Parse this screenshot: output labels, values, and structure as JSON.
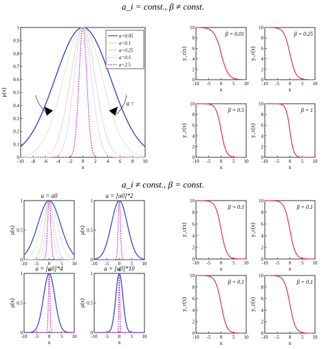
{
  "headings": {
    "top": "a_i = const., β ≠ const.",
    "bottom": "a_i ≠ const., β = const."
  },
  "colors": {
    "blue": "#3344cc",
    "magenta": "#c020c0",
    "red": "#e0303c",
    "pale": [
      "#cfe6cf",
      "#f5c8c8",
      "#cfd9f0",
      "#e8d0ee"
    ]
  },
  "chart_data": [
    {
      "id": "main",
      "type": "line",
      "xlabel": "x",
      "ylabel": "μ(x)",
      "xlim": [
        -10,
        10
      ],
      "ylim": [
        0,
        1
      ],
      "xticks": [
        -10,
        -8,
        -6,
        -4,
        -2,
        0,
        2,
        4,
        6,
        8,
        10
      ],
      "yticks": [
        0,
        0.1,
        0.2,
        0.3,
        0.4,
        0.5,
        0.6,
        0.7,
        0.8,
        0.9,
        1
      ],
      "legend_position": "top-right",
      "annotation": "a ↑",
      "series": [
        {
          "name": "a=0.05",
          "a": 0.05,
          "style": "solid",
          "color": "#3344cc"
        },
        {
          "name": "a=0.1",
          "a": 0.1,
          "style": "solid",
          "color": "#cfe6cf"
        },
        {
          "name": "a=0.25",
          "a": 0.25,
          "style": "solid",
          "color": "#f5c8c8"
        },
        {
          "name": "a=0.5",
          "a": 0.5,
          "style": "solid",
          "color": "#cfd9f0"
        },
        {
          "name": "a=2.5",
          "a": 2.5,
          "style": "dotted",
          "color": "#c020c0"
        }
      ]
    },
    {
      "id": "s1",
      "type": "line",
      "xlabel": "x",
      "ylabel": "y_c(x)",
      "title": "β = 0.01",
      "xlim": [
        -10,
        10
      ],
      "ylim": [
        0,
        10
      ],
      "xticks": [
        -10,
        -5,
        0,
        5,
        10
      ],
      "yticks": [
        0,
        2,
        4,
        6,
        8,
        10
      ],
      "beta": 0.01,
      "color": "#e0303c"
    },
    {
      "id": "s2",
      "type": "line",
      "xlabel": "x",
      "ylabel": "y_c(x)",
      "title": "β = 0.25",
      "xlim": [
        -10,
        10
      ],
      "ylim": [
        0,
        10
      ],
      "xticks": [
        -10,
        -5,
        0,
        5,
        10
      ],
      "yticks": [
        0,
        2,
        4,
        6,
        8,
        10
      ],
      "beta": 0.25,
      "color": "#e0303c"
    },
    {
      "id": "s3",
      "type": "line",
      "xlabel": "x",
      "ylabel": "y_c(x)",
      "title": "β = 0.5",
      "xlim": [
        -10,
        10
      ],
      "ylim": [
        0,
        10
      ],
      "xticks": [
        -10,
        -5,
        0,
        5,
        10
      ],
      "yticks": [
        0,
        2,
        4,
        6,
        8,
        10
      ],
      "beta": 0.5,
      "color": "#e0303c"
    },
    {
      "id": "s4",
      "type": "line",
      "xlabel": "x",
      "ylabel": "y_c(x)",
      "title": "β = 1",
      "xlim": [
        -10,
        10
      ],
      "ylim": [
        0,
        10
      ],
      "xticks": [
        -10,
        -5,
        0,
        5,
        10
      ],
      "yticks": [
        0,
        2,
        4,
        6,
        8,
        10
      ],
      "beta": 1,
      "color": "#e0303c"
    },
    {
      "id": "g1",
      "type": "line",
      "xlabel": "x",
      "ylabel": "μ(x)",
      "title": "a = a0",
      "xlim": [
        -10,
        10
      ],
      "ylim": [
        0,
        1
      ],
      "xticks": [
        -10,
        -5,
        0,
        5,
        10
      ],
      "yticks": [
        0,
        0.5,
        1
      ],
      "scale": 1
    },
    {
      "id": "g2",
      "type": "line",
      "xlabel": "x",
      "ylabel": "μ(x)",
      "title": "a = [a0]*2",
      "xlim": [
        -10,
        10
      ],
      "ylim": [
        0,
        1
      ],
      "xticks": [
        -10,
        -5,
        0,
        5,
        10
      ],
      "yticks": [
        0,
        0.5,
        1
      ],
      "scale": 2
    },
    {
      "id": "g3",
      "type": "line",
      "xlabel": "x",
      "ylabel": "μ(x)",
      "title": "a = [a0]*4",
      "xlim": [
        -10,
        10
      ],
      "ylim": [
        0,
        1
      ],
      "xticks": [
        -10,
        -5,
        0,
        5,
        10
      ],
      "yticks": [
        0,
        0.5,
        1
      ],
      "scale": 4
    },
    {
      "id": "g4",
      "type": "line",
      "xlabel": "x",
      "ylabel": "μ(x)",
      "title": "a = [a0]*10",
      "xlim": [
        -10,
        10
      ],
      "ylim": [
        0,
        1
      ],
      "xticks": [
        -10,
        -5,
        0,
        5,
        10
      ],
      "yticks": [
        0,
        0.5,
        1
      ],
      "scale": 10
    },
    {
      "id": "t1",
      "type": "line",
      "xlabel": "x",
      "ylabel": "y_c(x)",
      "title": "β = 0.1",
      "xlim": [
        -10,
        10
      ],
      "ylim": [
        0,
        10
      ],
      "xticks": [
        -10,
        -5,
        0,
        5,
        10
      ],
      "yticks": [
        0,
        2,
        4,
        6,
        8,
        10
      ],
      "beta": 0.1,
      "color": "#e0303c"
    },
    {
      "id": "t2",
      "type": "line",
      "xlabel": "x",
      "ylabel": "y_c(x)",
      "title": "β = 0.1",
      "xlim": [
        -10,
        10
      ],
      "ylim": [
        0,
        10
      ],
      "xticks": [
        -10,
        -5,
        0,
        5,
        10
      ],
      "yticks": [
        0,
        2,
        4,
        6,
        8,
        10
      ],
      "beta": 0.1,
      "color": "#e0303c"
    },
    {
      "id": "t3",
      "type": "line",
      "xlabel": "x",
      "ylabel": "y_c(x)",
      "title": "β = 0.1",
      "xlim": [
        -10,
        10
      ],
      "ylim": [
        0,
        10
      ],
      "xticks": [
        -10,
        -5,
        0,
        5,
        10
      ],
      "yticks": [
        0,
        2,
        4,
        6,
        8,
        10
      ],
      "beta": 0.1,
      "color": "#e0303c"
    },
    {
      "id": "t4",
      "type": "line",
      "xlabel": "x",
      "ylabel": "y_c(x)",
      "title": "β = 0.1",
      "xlim": [
        -10,
        10
      ],
      "ylim": [
        0,
        10
      ],
      "xticks": [
        -10,
        -5,
        0,
        5,
        10
      ],
      "yticks": [
        0,
        2,
        4,
        6,
        8,
        10
      ],
      "beta": 0.1,
      "color": "#e0303c"
    }
  ]
}
